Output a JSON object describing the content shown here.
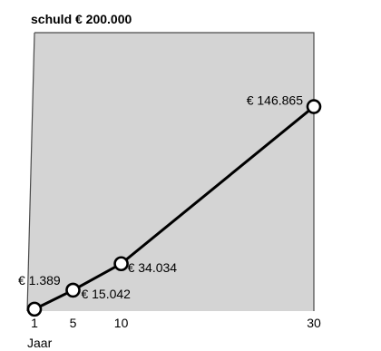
{
  "chart_data": {
    "type": "line",
    "title": "schuld € 200.000",
    "xlabel": "Jaar",
    "ylabel": "",
    "x": [
      1,
      5,
      10,
      30
    ],
    "values": [
      1389,
      15042,
      34034,
      146865
    ],
    "data_labels": [
      "€ 1.389",
      "€ 15.042",
      "€ 34.034",
      "€ 146.865"
    ],
    "tick_labels": [
      "1",
      "5",
      "10",
      "30"
    ],
    "xlim": [
      1,
      30
    ],
    "ylim": [
      0,
      200000
    ],
    "grid": false,
    "legend": "none",
    "colors": {
      "area": "#d4d4d4",
      "line": "#000000",
      "marker_fill": "#ffffff",
      "marker_stroke": "#000000",
      "outline": "#4a4a4a"
    }
  }
}
